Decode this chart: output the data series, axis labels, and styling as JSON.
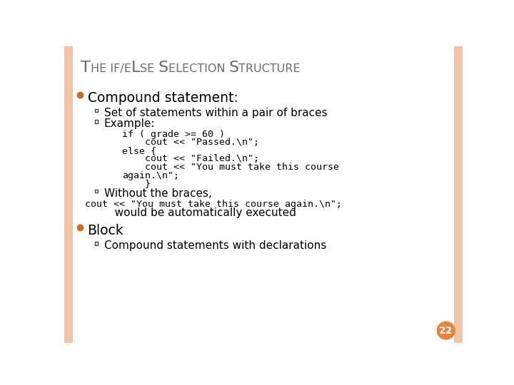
{
  "title_parts": [
    {
      "text": "T",
      "big": true
    },
    {
      "text": "HE IF/E",
      "big": false
    },
    {
      "text": "L",
      "big": true
    },
    {
      "text": "SE ",
      "big": false
    },
    {
      "text": "S",
      "big": true
    },
    {
      "text": "ELECTION ",
      "big": false
    },
    {
      "text": "S",
      "big": true
    },
    {
      "text": "TRUCTURE",
      "big": false
    }
  ],
  "title_color": "#6B6B6B",
  "bg_color": "#FFFFFF",
  "border_color": "#F2C4A8",
  "bullet1_color": "#D2691E",
  "text_color": "#000000",
  "page_num": "22",
  "page_circle_color": "#E8833A",
  "page_num_color": "#FFFFFF",
  "bullet1_items": [
    {
      "text": "Compound statement:",
      "children": [
        {
          "type": "bullet2",
          "text": "Set of statements within a pair of braces"
        },
        {
          "type": "bullet2",
          "text": "Example:"
        },
        {
          "type": "code",
          "lines": [
            "if ( grade >= 60 )",
            "    cout << \"Passed.\\n\";",
            "else {",
            "    cout << \"Failed.\\n\";",
            "    cout << \"You must take this course",
            "again.\\n\";",
            "    }"
          ]
        },
        {
          "type": "bullet2",
          "text": "Without the braces,"
        },
        {
          "type": "code_line",
          "text": "cout << \"You must take this course again.\\n\";"
        },
        {
          "type": "plain_indent",
          "text": "   would be automatically executed"
        }
      ]
    },
    {
      "text": "Block",
      "children": [
        {
          "type": "bullet2",
          "text": "Compound statements with declarations"
        }
      ]
    }
  ]
}
